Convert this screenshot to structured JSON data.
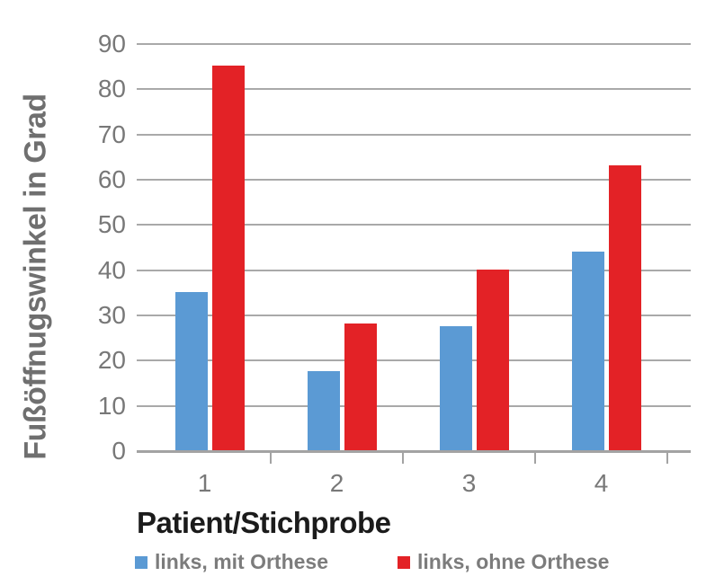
{
  "chart_data": {
    "type": "bar",
    "title": "",
    "categories": [
      "1",
      "2",
      "3",
      "4"
    ],
    "series": [
      {
        "name": "links, mit Orthese",
        "color": "#5b9ad4",
        "values": [
          35,
          17.5,
          27.5,
          44
        ]
      },
      {
        "name": "links, ohne Orthese",
        "color": "#e32226",
        "values": [
          85,
          28,
          40,
          63
        ]
      }
    ],
    "xlabel": "Patient/Stichprobe",
    "ylabel": "Fußöffnugswinkel in Grad",
    "ylim": [
      0,
      90
    ],
    "y_ticks": [
      0,
      10,
      20,
      30,
      40,
      50,
      60,
      70,
      80,
      90
    ],
    "grid": "horizontal",
    "legend_position": "bottom",
    "colors": {
      "gridline": "#a9a9a9",
      "axis_line": "#a3a3a3",
      "tick_text": "#787878",
      "y_title_text": "#6f6f6f",
      "x_title_text": "#1b1b1b",
      "legend_text": "#7c7c7c"
    }
  }
}
